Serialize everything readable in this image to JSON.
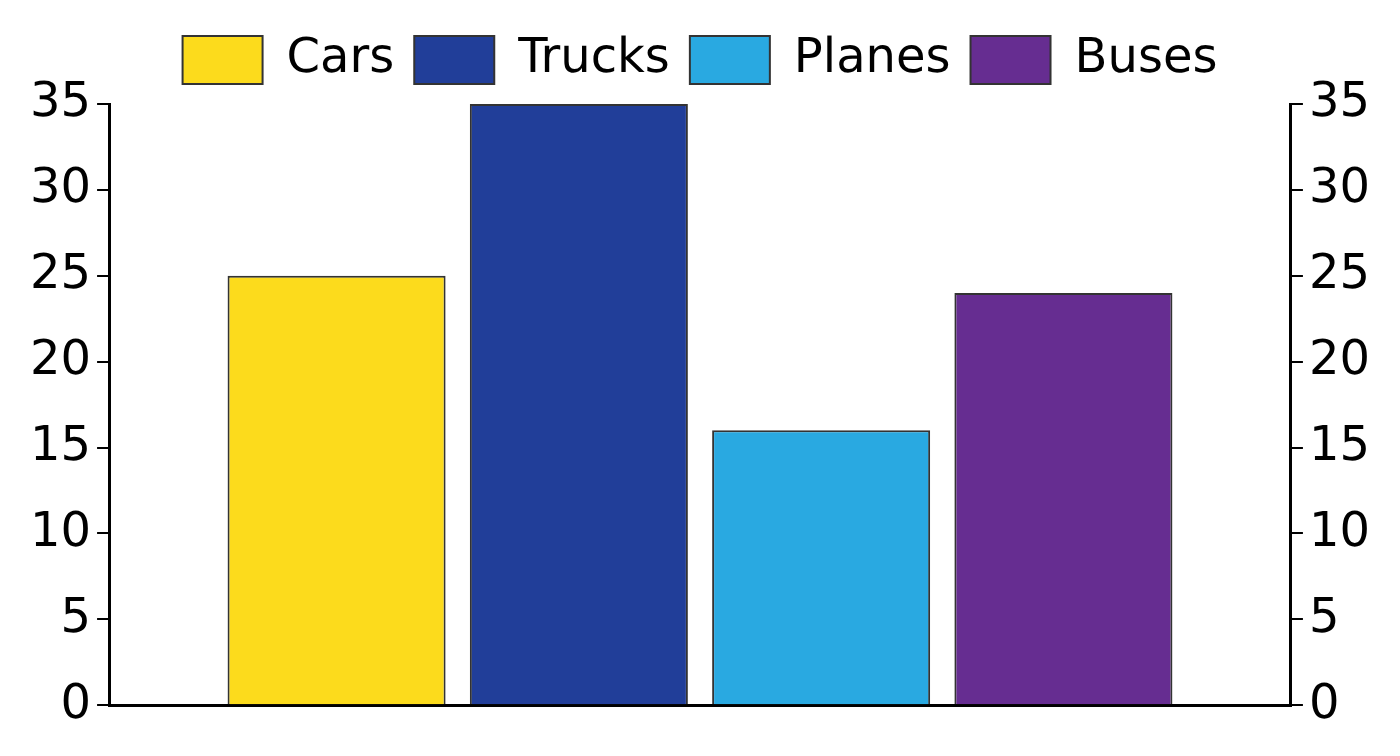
{
  "chart_data": {
    "type": "bar",
    "categories": [
      null
    ],
    "series": [
      {
        "name": "Cars",
        "color": "#fcdb1c",
        "values": [
          25
        ]
      },
      {
        "name": "Trucks",
        "color": "#213e99",
        "values": [
          35
        ]
      },
      {
        "name": "Planes",
        "color": "#29a9e1",
        "values": [
          16
        ]
      },
      {
        "name": "Buses",
        "color": "#662d91",
        "values": [
          24
        ]
      }
    ],
    "ylim": [
      0,
      35
    ],
    "yticks": [
      0,
      5,
      10,
      15,
      20,
      25,
      30,
      35
    ],
    "y2lim": [
      0,
      35
    ],
    "y2ticks": [
      0,
      5,
      10,
      15,
      20,
      25,
      30,
      35
    ],
    "grid": false,
    "legend": "top"
  }
}
